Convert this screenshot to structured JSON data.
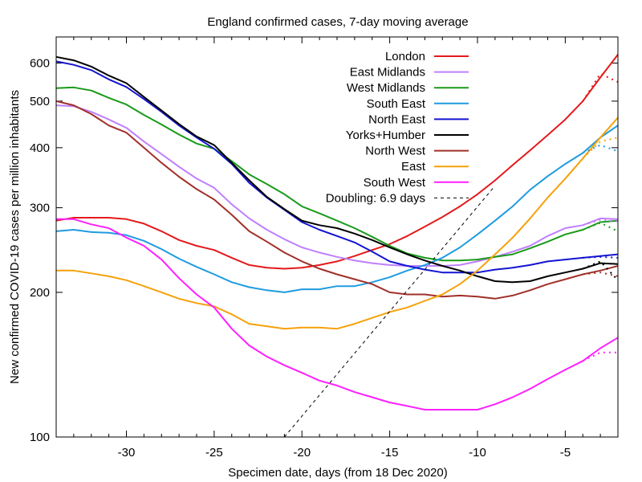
{
  "chart_data": {
    "type": "line",
    "title": "England confirmed cases, 7-day moving average",
    "xlabel": "Specimen date, days (from 18 Dec 2020)",
    "ylabel": "New confirmed COVID-19 cases per million inhabitants",
    "xlim": [
      -34,
      -2
    ],
    "ylim": [
      100,
      680
    ],
    "yscale": "log",
    "x_ticks": [
      -30,
      -25,
      -20,
      -15,
      -10,
      -5
    ],
    "x_tick_labels": [
      "-30",
      "-25",
      "-20",
      "-15",
      "-10",
      "-5"
    ],
    "y_ticks": [
      100,
      200,
      300,
      400,
      500,
      600
    ],
    "y_tick_labels": [
      "100",
      "200",
      "300",
      "400",
      "500",
      "600"
    ],
    "legend_position": "top-right",
    "x": [
      -34,
      -33,
      -32,
      -31,
      -30,
      -29,
      -28,
      -27,
      -26,
      -25,
      -24,
      -23,
      -22,
      -21,
      -20,
      -19,
      -18,
      -17,
      -16,
      -15,
      -14,
      -13,
      -12,
      -11,
      -10,
      -9,
      -8,
      -7,
      -6,
      -5,
      -4,
      -3,
      -2
    ],
    "series": [
      {
        "name": "London",
        "color": "#e41a1c",
        "values": [
          282,
          286,
          286,
          286,
          284,
          278,
          268,
          257,
          250,
          245,
          236,
          228,
          225,
          224,
          225,
          228,
          232,
          238,
          245,
          252,
          262,
          274,
          287,
          302,
          320,
          342,
          368,
          395,
          425,
          458,
          500,
          560,
          625
        ]
      },
      {
        "name": "East Midlands",
        "color": "#bf7fff",
        "values": [
          490,
          488,
          475,
          458,
          440,
          412,
          388,
          365,
          345,
          330,
          305,
          285,
          270,
          258,
          248,
          242,
          237,
          233,
          230,
          228,
          227,
          227,
          227,
          228,
          232,
          237,
          243,
          250,
          262,
          272,
          276,
          285,
          284
        ]
      },
      {
        "name": "West Midlands",
        "color": "#1a9a1a",
        "values": [
          532,
          534,
          526,
          508,
          492,
          468,
          447,
          426,
          408,
          398,
          375,
          352,
          336,
          320,
          302,
          292,
          282,
          272,
          261,
          250,
          241,
          236,
          233,
          233,
          234,
          237,
          240,
          247,
          255,
          264,
          270,
          280,
          282
        ]
      },
      {
        "name": "South East",
        "color": "#1f9be0",
        "values": [
          268,
          270,
          267,
          266,
          263,
          256,
          246,
          235,
          226,
          218,
          210,
          205,
          202,
          200,
          203,
          203,
          206,
          206,
          210,
          215,
          222,
          228,
          236,
          248,
          264,
          282,
          302,
          327,
          349,
          370,
          390,
          420,
          445
        ]
      },
      {
        "name": "North East",
        "color": "#1414d2",
        "values": [
          605,
          595,
          580,
          555,
          535,
          505,
          475,
          445,
          420,
          398,
          370,
          338,
          315,
          297,
          280,
          270,
          262,
          254,
          243,
          232,
          227,
          223,
          220,
          220,
          220,
          223,
          225,
          228,
          232,
          234,
          236,
          238,
          240
        ]
      },
      {
        "name": "Yorks+Humber",
        "color": "#000000",
        "values": [
          618,
          608,
          590,
          565,
          545,
          510,
          478,
          448,
          422,
          405,
          372,
          342,
          316,
          298,
          282,
          276,
          272,
          265,
          257,
          248,
          240,
          233,
          227,
          222,
          216,
          211,
          210,
          211,
          216,
          220,
          224,
          230,
          229
        ]
      },
      {
        "name": "North West",
        "color": "#a0302a",
        "values": [
          500,
          490,
          470,
          445,
          430,
          400,
          372,
          348,
          328,
          312,
          290,
          268,
          255,
          242,
          232,
          224,
          218,
          213,
          208,
          200,
          198,
          198,
          196,
          197,
          196,
          194,
          197,
          202,
          208,
          213,
          218,
          222,
          227
        ]
      },
      {
        "name": "East",
        "color": "#f5a10a",
        "values": [
          222,
          222,
          219,
          216,
          212,
          206,
          200,
          194,
          190,
          187,
          180,
          172,
          170,
          168,
          169,
          169,
          168,
          172,
          177,
          182,
          186,
          192,
          198,
          208,
          222,
          240,
          260,
          285,
          315,
          345,
          380,
          420,
          462
        ]
      },
      {
        "name": "South West",
        "color": "#ff20ff",
        "values": [
          284,
          284,
          277,
          272,
          260,
          250,
          234,
          214,
          198,
          186,
          168,
          155,
          147,
          141,
          136,
          131,
          128,
          124,
          121,
          118,
          116,
          114,
          114,
          114,
          114,
          117,
          121,
          126,
          132,
          138,
          144,
          153,
          161
        ]
      }
    ],
    "provisional_tails": [
      {
        "name": "London",
        "x": [
          -4,
          -3,
          -2
        ],
        "values": [
          500,
          570,
          548
        ]
      },
      {
        "name": "East Midlands",
        "x": [
          -4,
          -3,
          -2
        ],
        "values": [
          276,
          283,
          281
        ]
      },
      {
        "name": "West Midlands",
        "x": [
          -4,
          -3,
          -2
        ],
        "values": [
          270,
          279,
          268
        ]
      },
      {
        "name": "South East",
        "x": [
          -4,
          -3,
          -2
        ],
        "values": [
          390,
          405,
          393
        ]
      },
      {
        "name": "North East",
        "x": [
          -4,
          -3,
          -2
        ],
        "values": [
          236,
          237,
          236
        ]
      },
      {
        "name": "Yorks+Humber",
        "x": [
          -4,
          -3,
          -2
        ],
        "values": [
          224,
          232,
          212
        ]
      },
      {
        "name": "North West",
        "x": [
          -4,
          -3,
          -2
        ],
        "values": [
          218,
          220,
          216
        ]
      },
      {
        "name": "East",
        "x": [
          -4,
          -3,
          -2
        ],
        "values": [
          380,
          412,
          420
        ]
      },
      {
        "name": "South West",
        "x": [
          -4,
          -3,
          -2
        ],
        "values": [
          144,
          150,
          150
        ]
      }
    ],
    "reference_line": {
      "name": "Doubling: 6.9 days",
      "color": "#000000",
      "style": "dashed",
      "x": [
        -21,
        -9.1
      ],
      "values": [
        100,
        330
      ]
    }
  }
}
